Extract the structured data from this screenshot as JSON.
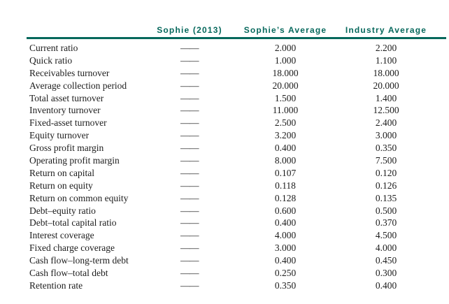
{
  "colors": {
    "header_accent": "#06685C",
    "body_text": "#1c1c1c",
    "background": "#ffffff"
  },
  "table": {
    "columns": [
      "",
      "Sophie (2013)",
      "Sophie’s Average",
      "Industry Average"
    ],
    "rows": [
      {
        "label": "Current ratio",
        "sophie": "——",
        "sophie_avg": "2.000",
        "industry_avg": "2.200"
      },
      {
        "label": "Quick ratio",
        "sophie": "——",
        "sophie_avg": "1.000",
        "industry_avg": "1.100"
      },
      {
        "label": "Receivables turnover",
        "sophie": "——",
        "sophie_avg": "18.000",
        "industry_avg": "18.000"
      },
      {
        "label": "Average collection period",
        "sophie": "——",
        "sophie_avg": "20.000",
        "industry_avg": "20.000"
      },
      {
        "label": "Total asset turnover",
        "sophie": "——",
        "sophie_avg": "1.500",
        "industry_avg": "1.400"
      },
      {
        "label": "Inventory turnover",
        "sophie": "——",
        "sophie_avg": "11.000",
        "industry_avg": "12.500"
      },
      {
        "label": "Fixed-asset turnover",
        "sophie": "——",
        "sophie_avg": "2.500",
        "industry_avg": "2.400"
      },
      {
        "label": "Equity turnover",
        "sophie": "——",
        "sophie_avg": "3.200",
        "industry_avg": "3.000"
      },
      {
        "label": "Gross profit margin",
        "sophie": "——",
        "sophie_avg": "0.400",
        "industry_avg": "0.350"
      },
      {
        "label": "Operating profit margin",
        "sophie": "——",
        "sophie_avg": "8.000",
        "industry_avg": "7.500"
      },
      {
        "label": "Return on capital",
        "sophie": "——",
        "sophie_avg": "0.107",
        "industry_avg": "0.120"
      },
      {
        "label": "Return on equity",
        "sophie": "——",
        "sophie_avg": "0.118",
        "industry_avg": "0.126"
      },
      {
        "label": "Return on common equity",
        "sophie": "——",
        "sophie_avg": "0.128",
        "industry_avg": "0.135"
      },
      {
        "label": "Debt–equity ratio",
        "sophie": "——",
        "sophie_avg": "0.600",
        "industry_avg": "0.500"
      },
      {
        "label": "Debt–total capital ratio",
        "sophie": "——",
        "sophie_avg": "0.400",
        "industry_avg": "0.370"
      },
      {
        "label": "Interest coverage",
        "sophie": "——",
        "sophie_avg": "4.000",
        "industry_avg": "4.500"
      },
      {
        "label": "Fixed charge coverage",
        "sophie": "——",
        "sophie_avg": "3.000",
        "industry_avg": "4.000"
      },
      {
        "label": "Cash flow–long-term debt",
        "sophie": "——",
        "sophie_avg": "0.400",
        "industry_avg": "0.450"
      },
      {
        "label": "Cash flow–total debt",
        "sophie": "——",
        "sophie_avg": "0.250",
        "industry_avg": "0.300"
      },
      {
        "label": "Retention rate",
        "sophie": "——",
        "sophie_avg": "0.350",
        "industry_avg": "0.400"
      }
    ]
  }
}
